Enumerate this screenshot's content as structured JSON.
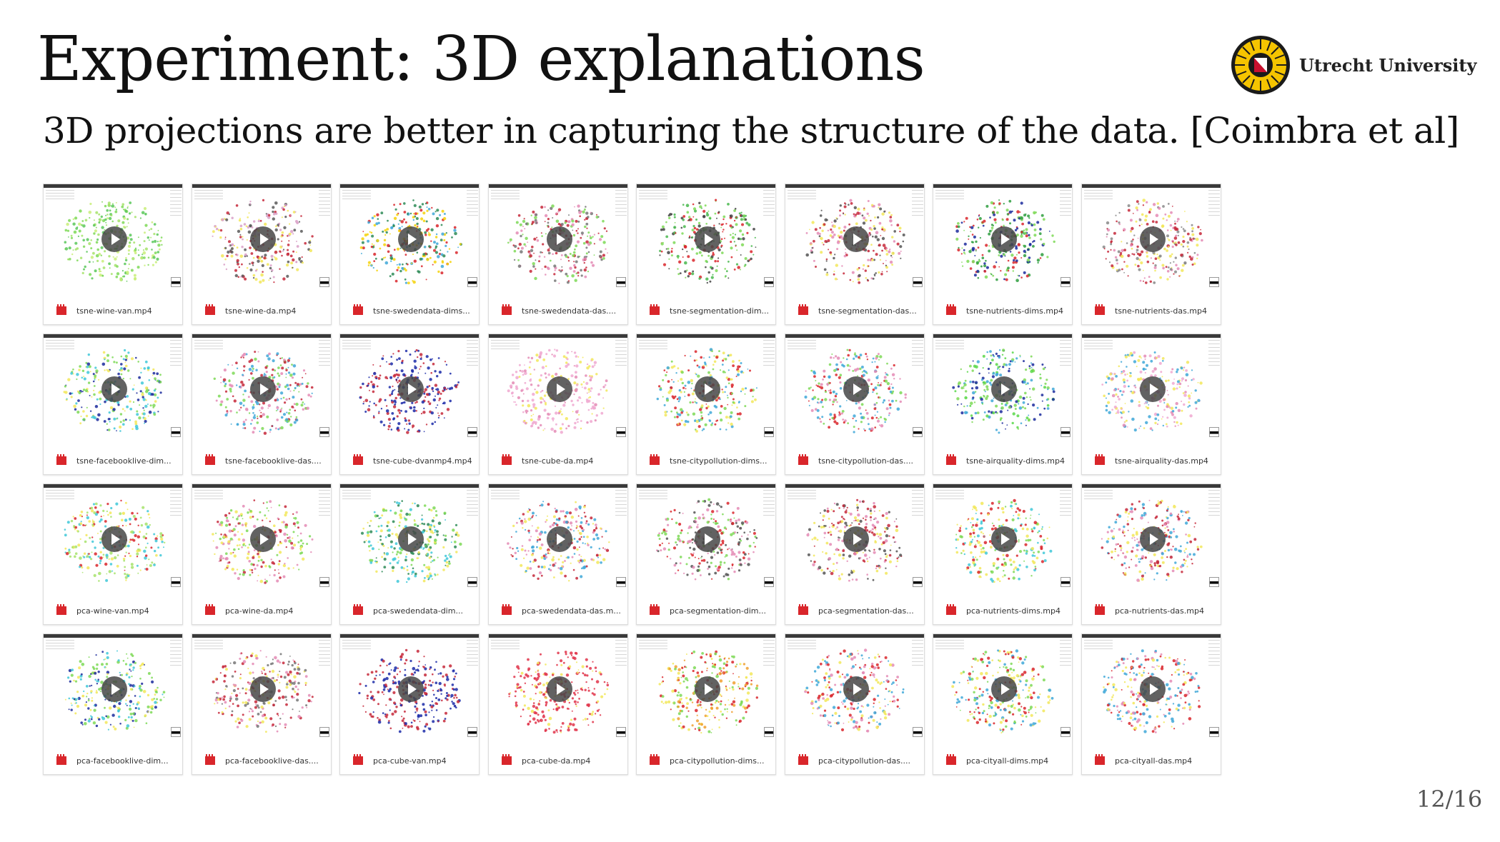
{
  "slide": {
    "title": "Experiment: 3D explanations",
    "subtitle": "3D projections are better in capturing the structure of the data. [Coimbra et al]",
    "logo_text": "Utrecht University",
    "page_number": "12/16"
  },
  "colors": {
    "file_icon": "#d9262b",
    "play_button": "#464646",
    "logo_yellow": "#f5c400"
  },
  "videos": [
    {
      "name": "tsne-wine-van.mp4",
      "palette": [
        "#7ed957",
        "#a6e36b",
        "#c9ef7a",
        "#5bc85a"
      ]
    },
    {
      "name": "tsne-wine-da.mp4",
      "palette": [
        "#c62839",
        "#f2e85a",
        "#d99fc7",
        "#5a5a5a"
      ]
    },
    {
      "name": "tsne-swedendata-dims...",
      "palette": [
        "#2e8b57",
        "#f5d20a",
        "#d9262b",
        "#3fa8d8"
      ]
    },
    {
      "name": "tsne-swedendata-das....",
      "palette": [
        "#e48bb5",
        "#7ed957",
        "#c62839",
        "#777777"
      ]
    },
    {
      "name": "tsne-segmentation-dim...",
      "palette": [
        "#49b84d",
        "#7ed957",
        "#d9262b",
        "#444444"
      ]
    },
    {
      "name": "tsne-segmentation-das...",
      "palette": [
        "#e48bb5",
        "#f2e85a",
        "#c62839",
        "#555555"
      ]
    },
    {
      "name": "tsne-nutrients-dims.mp4",
      "palette": [
        "#2e9e3e",
        "#7ed957",
        "#1b2a9c",
        "#d9262b"
      ]
    },
    {
      "name": "tsne-nutrients-das.mp4",
      "palette": [
        "#e48bb5",
        "#f2e85a",
        "#c62839",
        "#888888"
      ]
    },
    {
      "name": "tsne-facebooklive-dim...",
      "palette": [
        "#1b2a9c",
        "#f2e85a",
        "#3fc8d8",
        "#7ed957"
      ]
    },
    {
      "name": "tsne-facebooklive-das....",
      "palette": [
        "#e48bb5",
        "#7ed957",
        "#c62839",
        "#3fa8d8"
      ]
    },
    {
      "name": "tsne-cube-dvanmp4.mp4",
      "palette": [
        "#1b2aa8",
        "#c62839",
        "#1b2aa8",
        "#c62839"
      ]
    },
    {
      "name": "tsne-cube-da.mp4",
      "palette": [
        "#f0a8d0",
        "#f2e85a",
        "#e48bb5",
        "#f0a8d0"
      ]
    },
    {
      "name": "tsne-citypollution-dims...",
      "palette": [
        "#7ed957",
        "#d9262b",
        "#3fa8d8",
        "#f2e85a"
      ]
    },
    {
      "name": "tsne-citypollution-das....",
      "palette": [
        "#7ed957",
        "#d9262b",
        "#3fa8d8",
        "#e48bb5"
      ]
    },
    {
      "name": "tsne-airquality-dims.mp4",
      "palette": [
        "#5bd84a",
        "#7ed957",
        "#1b2a9c",
        "#3fa8d8"
      ]
    },
    {
      "name": "tsne-airquality-das.mp4",
      "palette": [
        "#e48bb5",
        "#f0a8d0",
        "#f2e85a",
        "#3fa8d8"
      ]
    },
    {
      "name": "pca-wine-van.mp4",
      "palette": [
        "#a6e36b",
        "#f2e85a",
        "#d9262b",
        "#3fc8d8"
      ]
    },
    {
      "name": "pca-wine-da.mp4",
      "palette": [
        "#c62839",
        "#e48bb5",
        "#f2e85a",
        "#7ed957"
      ]
    },
    {
      "name": "pca-swedendata-dim...",
      "palette": [
        "#7ed957",
        "#3fc8d8",
        "#f2e85a",
        "#2e8b57"
      ]
    },
    {
      "name": "pca-swedendata-das.m...",
      "palette": [
        "#e48bb5",
        "#f2e85a",
        "#c62839",
        "#3fa8d8"
      ]
    },
    {
      "name": "pca-segmentation-dim...",
      "palette": [
        "#d9262b",
        "#7ed957",
        "#e48bb5",
        "#555555"
      ]
    },
    {
      "name": "pca-segmentation-das...",
      "palette": [
        "#e48bb5",
        "#f2e85a",
        "#c62839",
        "#555555"
      ]
    },
    {
      "name": "pca-nutrients-dims.mp4",
      "palette": [
        "#3fc8d8",
        "#f2e85a",
        "#7ed957",
        "#d9262b"
      ]
    },
    {
      "name": "pca-nutrients-das.mp4",
      "palette": [
        "#e48bb5",
        "#f2e85a",
        "#c62839",
        "#3fa8d8"
      ]
    },
    {
      "name": "pca-facebooklive-dim...",
      "palette": [
        "#3fc8d8",
        "#f2e85a",
        "#7ed957",
        "#1b2a9c"
      ]
    },
    {
      "name": "pca-facebooklive-das....",
      "palette": [
        "#c62839",
        "#e48bb5",
        "#777777",
        "#f2e85a"
      ]
    },
    {
      "name": "pca-cube-van.mp4",
      "palette": [
        "#1b2aa8",
        "#c62839",
        "#c62839",
        "#1b2aa8"
      ]
    },
    {
      "name": "pca-cube-da.mp4",
      "palette": [
        "#e0344a",
        "#f2e85a",
        "#e0344a",
        "#e0344a"
      ]
    },
    {
      "name": "pca-citypollution-dims...",
      "palette": [
        "#f2e85a",
        "#7ed957",
        "#d9262b",
        "#f0a030"
      ]
    },
    {
      "name": "pca-citypollution-das....",
      "palette": [
        "#f2e85a",
        "#d9262b",
        "#3fa8d8",
        "#e48bb5"
      ]
    },
    {
      "name": "pca-cityall-dims.mp4",
      "palette": [
        "#3fa8d8",
        "#f2e85a",
        "#d9262b",
        "#7ed957"
      ]
    },
    {
      "name": "pca-cityall-das.mp4",
      "palette": [
        "#d9262b",
        "#3fa8d8",
        "#e48bb5",
        "#f2e85a"
      ]
    }
  ]
}
